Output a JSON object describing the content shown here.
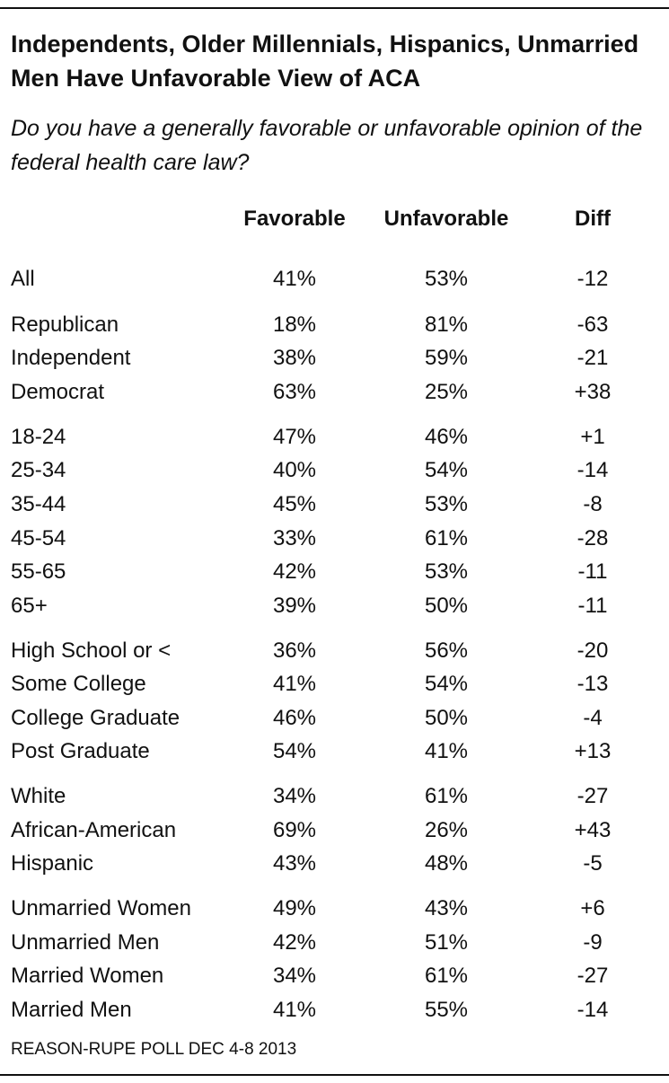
{
  "chart_data": {
    "type": "table",
    "title": "Independents, Older Millennials, Hispanics, Unmarried Men Have Unfavorable View of ACA",
    "subtitle": "Do you have a generally favorable or unfavorable opinion of the federal health care law?",
    "columns": [
      "Favorable",
      "Unfavorable",
      "Diff"
    ],
    "rows": [
      {
        "label": "All",
        "favorable": "41%",
        "unfavorable": "53%",
        "diff": "-12"
      },
      {
        "label": "Republican",
        "favorable": "18%",
        "unfavorable": "81%",
        "diff": "-63"
      },
      {
        "label": "Independent",
        "favorable": "38%",
        "unfavorable": "59%",
        "diff": "-21"
      },
      {
        "label": "Democrat",
        "favorable": "63%",
        "unfavorable": "25%",
        "diff": "+38"
      },
      {
        "label": "18-24",
        "favorable": "47%",
        "unfavorable": "46%",
        "diff": "+1"
      },
      {
        "label": "25-34",
        "favorable": "40%",
        "unfavorable": "54%",
        "diff": "-14"
      },
      {
        "label": "35-44",
        "favorable": "45%",
        "unfavorable": "53%",
        "diff": "-8"
      },
      {
        "label": "45-54",
        "favorable": "33%",
        "unfavorable": "61%",
        "diff": "-28"
      },
      {
        "label": "55-65",
        "favorable": "42%",
        "unfavorable": "53%",
        "diff": "-11"
      },
      {
        "label": "65+",
        "favorable": "39%",
        "unfavorable": "50%",
        "diff": "-11"
      },
      {
        "label": "High School or <",
        "favorable": "36%",
        "unfavorable": "56%",
        "diff": "-20"
      },
      {
        "label": "Some College",
        "favorable": "41%",
        "unfavorable": "54%",
        "diff": "-13"
      },
      {
        "label": "College Graduate",
        "favorable": "46%",
        "unfavorable": "50%",
        "diff": "-4"
      },
      {
        "label": "Post Graduate",
        "favorable": "54%",
        "unfavorable": "41%",
        "diff": "+13"
      },
      {
        "label": "White",
        "favorable": "34%",
        "unfavorable": "61%",
        "diff": "-27"
      },
      {
        "label": "African-American",
        "favorable": "69%",
        "unfavorable": "26%",
        "diff": "+43"
      },
      {
        "label": "Hispanic",
        "favorable": "43%",
        "unfavorable": "48%",
        "diff": "-5"
      },
      {
        "label": "Unmarried Women",
        "favorable": "49%",
        "unfavorable": "43%",
        "diff": "+6"
      },
      {
        "label": "Unmarried Men",
        "favorable": "42%",
        "unfavorable": "51%",
        "diff": "-9"
      },
      {
        "label": "Married Women",
        "favorable": "34%",
        "unfavorable": "61%",
        "diff": "-27"
      },
      {
        "label": "Married Men",
        "favorable": "41%",
        "unfavorable": "55%",
        "diff": "-14"
      }
    ],
    "source": "REASON-RUPE POLL DEC 4-8 2013"
  }
}
